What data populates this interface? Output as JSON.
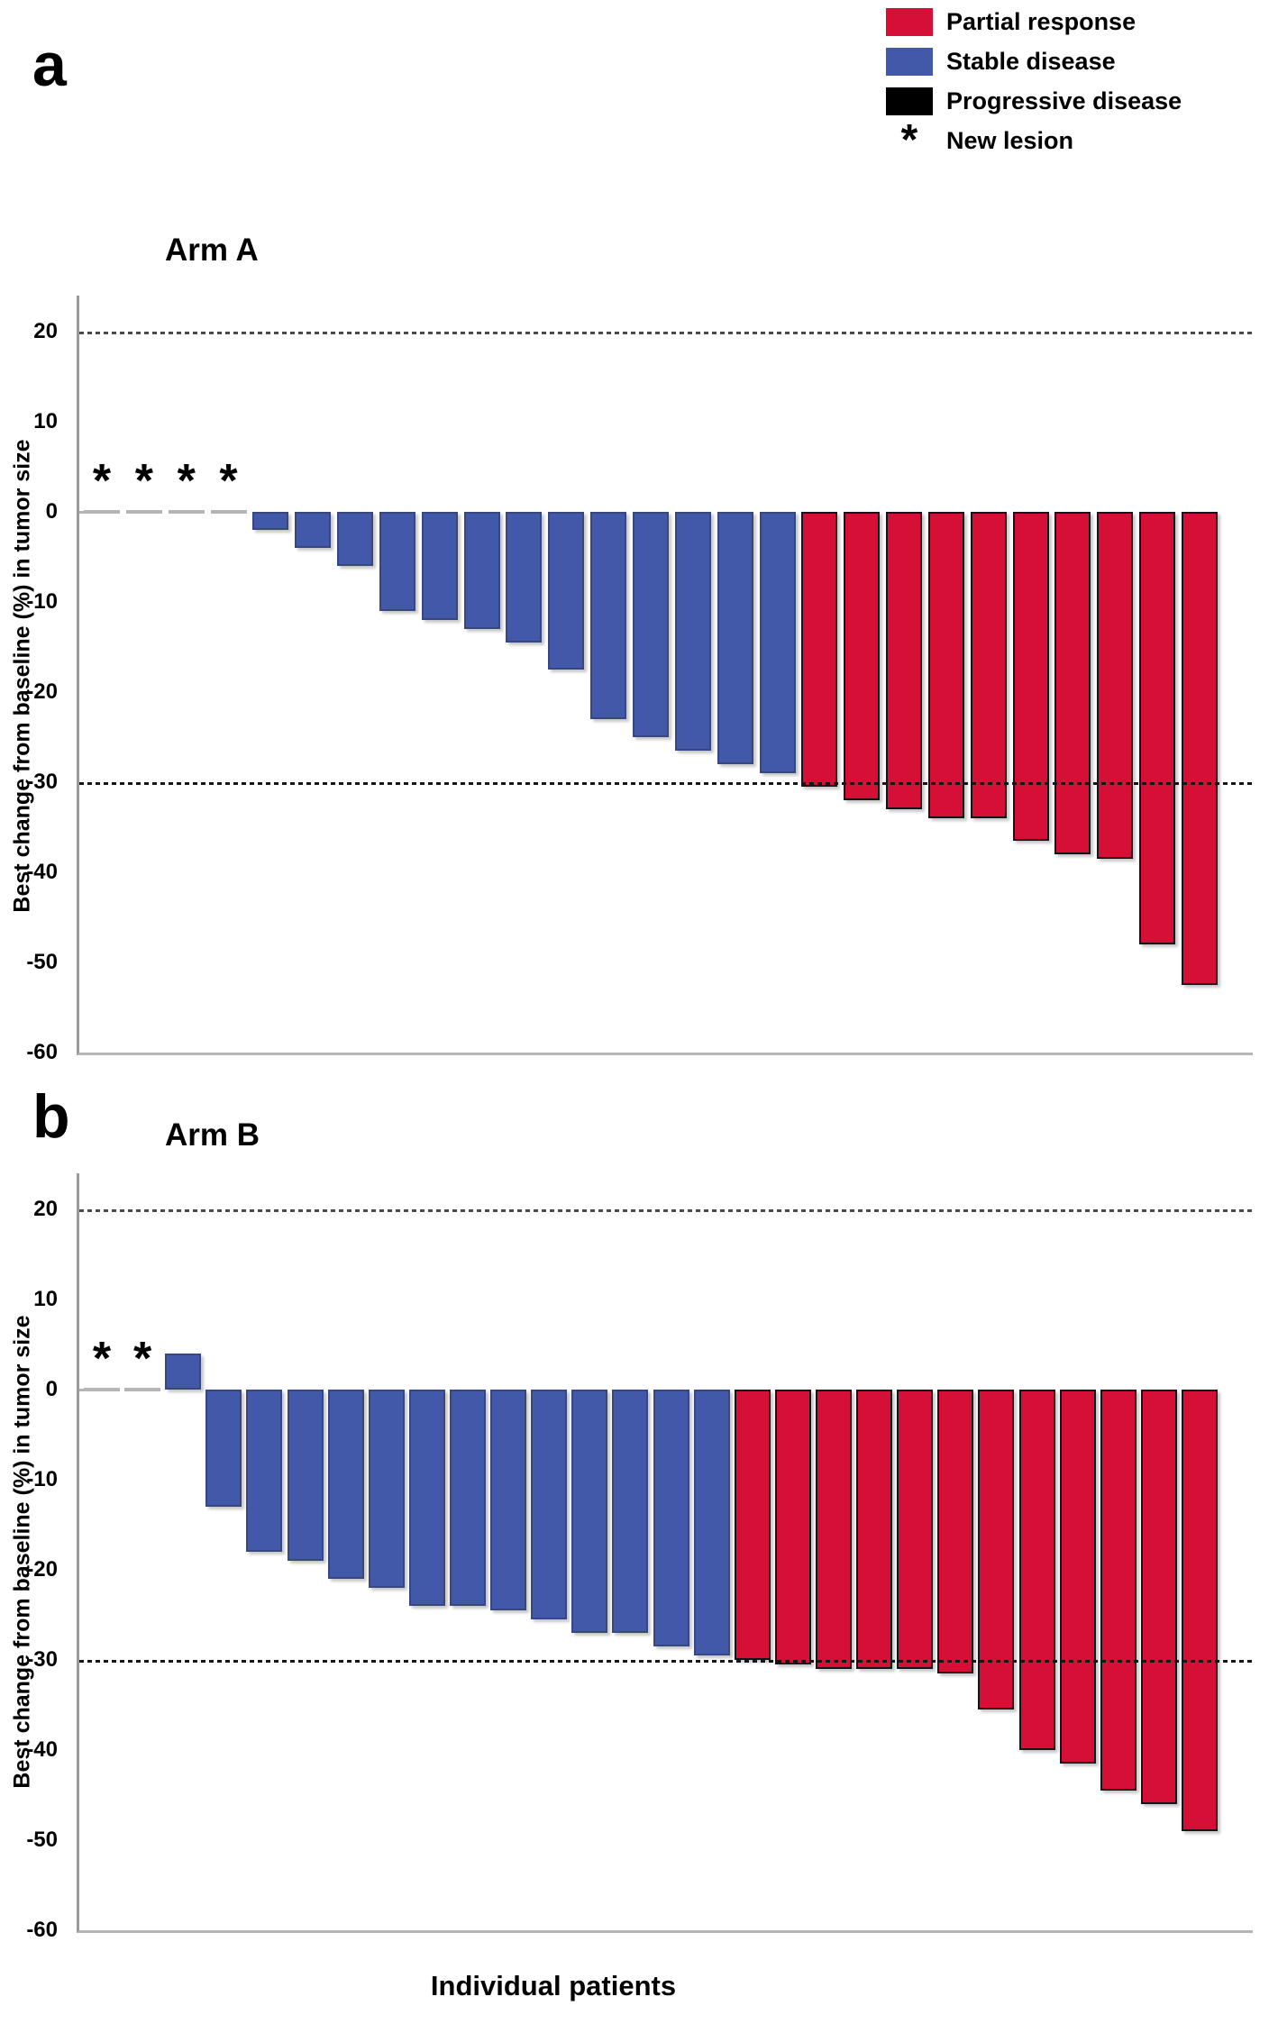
{
  "xlabel": "Individual patients",
  "legend": {
    "symbol_char": "*",
    "items": [
      {
        "label": "Partial response",
        "color": "#D50F35"
      },
      {
        "label": "Stable disease",
        "color": "#4159A8"
      },
      {
        "label": "Progressive disease",
        "color": "#000000"
      },
      {
        "label": "New lesion",
        "symbol": "*"
      }
    ]
  },
  "chart_data": [
    {
      "type": "bar",
      "panel_label": "a",
      "title": "Arm A",
      "ylabel": "Best change from baseline (%) in tumor size",
      "xlabel": "Individual patients",
      "ylim": [
        -60,
        24
      ],
      "yticks": [
        20,
        10,
        0,
        -10,
        -20,
        -30,
        -40,
        -50,
        -60
      ],
      "reference_lines": {
        "upper": 20,
        "lower": -30
      },
      "grid": false,
      "legend_position": "top-right",
      "bars": [
        {
          "value": 0,
          "response": "zero",
          "new_lesion": true
        },
        {
          "value": 0,
          "response": "zero",
          "new_lesion": true
        },
        {
          "value": 0,
          "response": "zero",
          "new_lesion": true
        },
        {
          "value": 0,
          "response": "zero",
          "new_lesion": true
        },
        {
          "value": -2,
          "response": "stable"
        },
        {
          "value": -4,
          "response": "stable"
        },
        {
          "value": -6,
          "response": "stable"
        },
        {
          "value": -11,
          "response": "stable"
        },
        {
          "value": -12,
          "response": "stable"
        },
        {
          "value": -13,
          "response": "stable"
        },
        {
          "value": -14.5,
          "response": "stable"
        },
        {
          "value": -17.5,
          "response": "stable"
        },
        {
          "value": -23,
          "response": "stable"
        },
        {
          "value": -25,
          "response": "stable"
        },
        {
          "value": -26.5,
          "response": "stable"
        },
        {
          "value": -28,
          "response": "stable"
        },
        {
          "value": -29,
          "response": "stable"
        },
        {
          "value": -30.5,
          "response": "partial"
        },
        {
          "value": -32,
          "response": "partial"
        },
        {
          "value": -33,
          "response": "partial"
        },
        {
          "value": -34,
          "response": "partial"
        },
        {
          "value": -34,
          "response": "partial"
        },
        {
          "value": -36.5,
          "response": "partial"
        },
        {
          "value": -38,
          "response": "partial"
        },
        {
          "value": -38.5,
          "response": "partial"
        },
        {
          "value": -48,
          "response": "partial"
        },
        {
          "value": -52.5,
          "response": "partial"
        }
      ]
    },
    {
      "type": "bar",
      "panel_label": "b",
      "title": "Arm B",
      "ylabel": "Best change from baseline (%) in tumor size",
      "xlabel": "Individual patients",
      "ylim": [
        -60,
        24
      ],
      "yticks": [
        20,
        10,
        0,
        -10,
        -20,
        -30,
        -40,
        -50,
        -60
      ],
      "reference_lines": {
        "upper": 20,
        "lower": -30
      },
      "grid": false,
      "bars": [
        {
          "value": 0,
          "response": "zero",
          "new_lesion": true
        },
        {
          "value": 0,
          "response": "zero",
          "new_lesion": true
        },
        {
          "value": 4,
          "response": "stable"
        },
        {
          "value": -13,
          "response": "stable"
        },
        {
          "value": -18,
          "response": "stable"
        },
        {
          "value": -19,
          "response": "stable"
        },
        {
          "value": -21,
          "response": "stable"
        },
        {
          "value": -22,
          "response": "stable"
        },
        {
          "value": -24,
          "response": "stable"
        },
        {
          "value": -24,
          "response": "stable"
        },
        {
          "value": -24.5,
          "response": "stable"
        },
        {
          "value": -25.5,
          "response": "stable"
        },
        {
          "value": -27,
          "response": "stable"
        },
        {
          "value": -27,
          "response": "stable"
        },
        {
          "value": -28.5,
          "response": "stable"
        },
        {
          "value": -29.5,
          "response": "stable"
        },
        {
          "value": -30,
          "response": "partial"
        },
        {
          "value": -30.5,
          "response": "partial"
        },
        {
          "value": -31,
          "response": "partial"
        },
        {
          "value": -31,
          "response": "partial"
        },
        {
          "value": -31,
          "response": "partial"
        },
        {
          "value": -31.5,
          "response": "partial"
        },
        {
          "value": -35.5,
          "response": "partial"
        },
        {
          "value": -40,
          "response": "partial"
        },
        {
          "value": -41.5,
          "response": "partial"
        },
        {
          "value": -44.5,
          "response": "partial"
        },
        {
          "value": -46,
          "response": "partial"
        },
        {
          "value": -49,
          "response": "partial"
        }
      ]
    }
  ]
}
